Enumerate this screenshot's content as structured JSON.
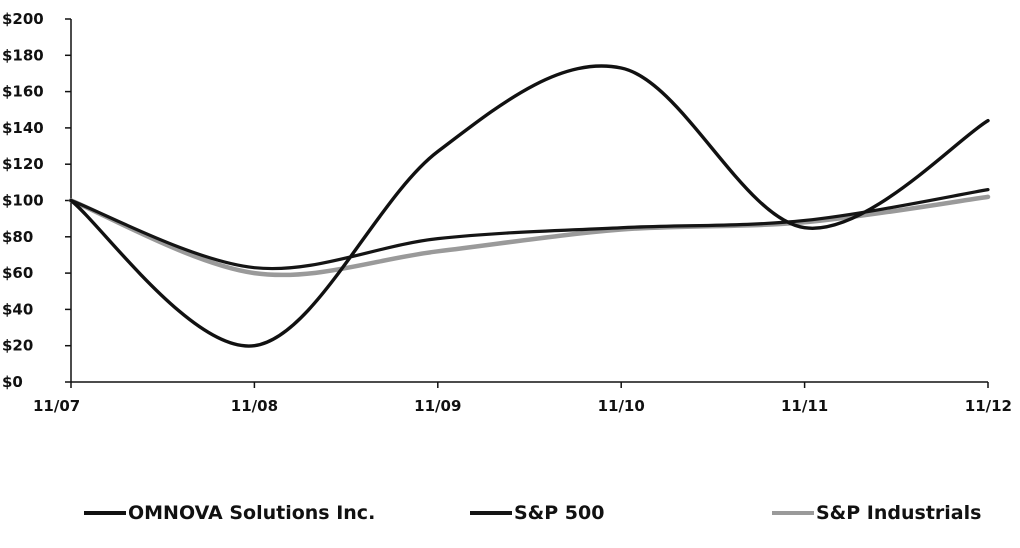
{
  "chart_data": {
    "type": "line",
    "categories": [
      "11/07",
      "11/08",
      "11/09",
      "11/10",
      "11/11",
      "11/12"
    ],
    "yticks": [
      "$0",
      "$20",
      "$40",
      "$60",
      "$80",
      "$100",
      "$120",
      "$140",
      "$160",
      "$180",
      "$200"
    ],
    "ylim": [
      0,
      200
    ],
    "grid": false,
    "legend_position": "bottom",
    "series": [
      {
        "name": "OMNOVA Solutions Inc.",
        "values": [
          100,
          20,
          127,
          173,
          85,
          144
        ],
        "color": "#111111"
      },
      {
        "name": "S&P 500",
        "values": [
          100,
          63,
          79,
          85,
          89,
          106
        ],
        "color": "#151515"
      },
      {
        "name": "S&P Industrials",
        "values": [
          100,
          60,
          72,
          84,
          88,
          102
        ],
        "color": "#9a9a9a"
      }
    ]
  }
}
